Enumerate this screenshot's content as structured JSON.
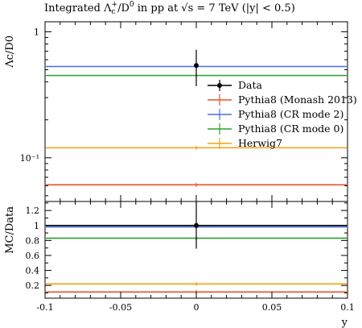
{
  "chart_data": {
    "type": "line",
    "title": {
      "prefix": "Integrated Λ",
      "sub": "c",
      "sup": "+",
      "mid": "/D",
      "sup2": "0",
      "suffix": " in pp at √s = 7 TeV (|y| < 0.5)"
    },
    "main_panel": {
      "ylabel": "Λc/D0",
      "yscale": "log",
      "ylim": [
        0.045,
        1.2
      ],
      "x_range": [
        -0.1,
        0.1
      ],
      "y_ticks": [
        {
          "value": 1,
          "label": "1"
        },
        {
          "value": 0.1,
          "label": "10⁻¹"
        }
      ],
      "data_point": {
        "x": 0,
        "y": 0.54,
        "y_err_low": 0.37,
        "y_err_high": 0.72
      },
      "series": [
        {
          "name": "Data",
          "color": "#000000",
          "value": 0.54
        },
        {
          "name": "Pythia8 (Monash 2013)",
          "color": "#e5532a",
          "value": 0.061
        },
        {
          "name": "Pythia8 (CR mode 2)",
          "color": "#4a6ee8",
          "value": 0.53
        },
        {
          "name": "Pythia8 (CR mode 0)",
          "color": "#2e9e2e",
          "value": 0.45
        },
        {
          "name": "Herwig7",
          "color": "#f2a20c",
          "value": 0.12
        }
      ],
      "legend_position": "center-right"
    },
    "ratio_panel": {
      "ylabel": "MC/Data",
      "ylim": [
        0.03,
        1.32
      ],
      "y_ticks": [
        {
          "value": 0.2,
          "label": "0.2"
        },
        {
          "value": 0.4,
          "label": "0.4"
        },
        {
          "value": 0.6,
          "label": "0.6"
        },
        {
          "value": 0.8,
          "label": "0.8"
        },
        {
          "value": 1.0,
          "label": "1"
        },
        {
          "value": 1.2,
          "label": "1.2"
        }
      ],
      "data_point": {
        "x": 0,
        "y": 1.0,
        "y_err_low": 0.69,
        "y_err_high": 1.32
      },
      "series": [
        {
          "name": "Data",
          "color": "#000000",
          "value": 1.0
        },
        {
          "name": "Pythia8 (Monash 2013)",
          "color": "#e5532a",
          "value": 0.113
        },
        {
          "name": "Pythia8 (CR mode 2)",
          "color": "#4a6ee8",
          "value": 0.98
        },
        {
          "name": "Pythia8 (CR mode 0)",
          "color": "#2e9e2e",
          "value": 0.83
        },
        {
          "name": "Herwig7",
          "color": "#f2a20c",
          "value": 0.22
        }
      ]
    },
    "x_axis": {
      "label": "y",
      "ticks": [
        {
          "value": -0.1,
          "label": "-0.1"
        },
        {
          "value": -0.05,
          "label": "-0.05"
        },
        {
          "value": 0,
          "label": "0"
        },
        {
          "value": 0.05,
          "label": "0.05"
        },
        {
          "value": 0.1,
          "label": "0.1"
        }
      ]
    }
  }
}
